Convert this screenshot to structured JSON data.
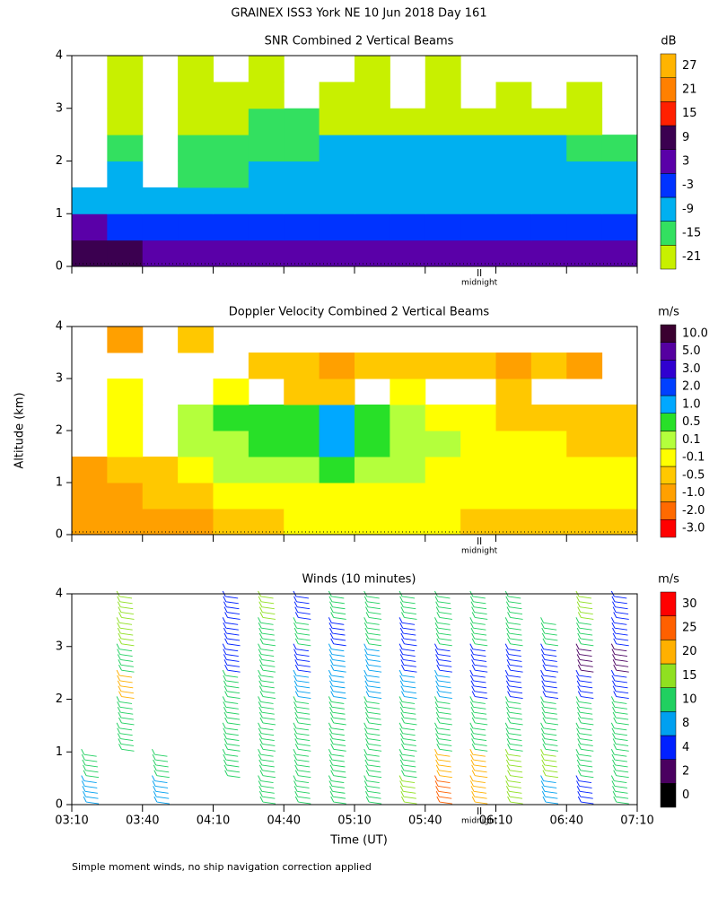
{
  "title": "GRAINEX ISS3 York NE  10 Jun 2018 Day 161",
  "y_label": "Altitude (km)",
  "x_label": "Time (UT)",
  "footnote": "Simple moment winds, no ship navigation correction applied",
  "xlim": [
    190,
    430
  ],
  "xticks": [
    {
      "value": 190,
      "label": "03:10"
    },
    {
      "value": 220,
      "label": "03:40"
    },
    {
      "value": 250,
      "label": "04:10"
    },
    {
      "value": 280,
      "label": "04:40"
    },
    {
      "value": 310,
      "label": "05:10"
    },
    {
      "value": 340,
      "label": "05:40"
    },
    {
      "value": 370,
      "label": "06:10"
    },
    {
      "value": 400,
      "label": "06:40"
    },
    {
      "value": 430,
      "label": "07:10"
    }
  ],
  "chart_data": [
    {
      "type": "heatmap",
      "title": "SNR Combined 2 Vertical Beams",
      "unit": "dB",
      "annotation": {
        "value": 363,
        "label": "midnight"
      },
      "ylim": [
        0,
        4
      ],
      "yticks": [
        0,
        1,
        2,
        3,
        4
      ],
      "x": [
        197.5,
        212.5,
        227.5,
        242.5,
        257.5,
        272.5,
        287.5,
        302.5,
        317.5,
        332.5,
        347.5,
        362.5,
        377.5,
        392.5,
        407.5,
        422.5
      ],
      "y": [
        0.25,
        0.75,
        1.25,
        1.75,
        2.25,
        2.75,
        3.25,
        3.75
      ],
      "values": [
        [
          9,
          9,
          8,
          6,
          5,
          5,
          4,
          4,
          4,
          4,
          3,
          3,
          3,
          3,
          3,
          3
        ],
        [
          3,
          2,
          1,
          0,
          -1,
          -1,
          -2,
          -2,
          -1,
          -1,
          -2,
          -2,
          -1,
          -1,
          -1,
          -1
        ],
        [
          -4,
          -4,
          -5,
          -5,
          -6,
          -6,
          -5,
          -5,
          -5,
          -4,
          -4,
          -4,
          -4,
          -4,
          -4,
          -5
        ],
        [
          null,
          -9,
          null,
          -10,
          -10,
          -9,
          -8,
          -8,
          -8,
          -8,
          -8,
          -9,
          -8,
          -9,
          -9,
          -9
        ],
        [
          null,
          -13,
          null,
          -13,
          -12,
          -11,
          -10,
          -9,
          -9,
          -8,
          -8,
          -8,
          -9,
          -9,
          -10,
          -10
        ],
        [
          null,
          -16,
          null,
          -17,
          -16,
          -15,
          -15,
          -16,
          -17,
          -17,
          -18,
          -18,
          -17,
          -18,
          -18,
          null
        ],
        [
          null,
          -17,
          null,
          -19,
          -19,
          -20,
          null,
          -19,
          -20,
          null,
          -20,
          null,
          -20,
          null,
          -20,
          null
        ],
        [
          null,
          -18,
          null,
          -20,
          null,
          -20,
          null,
          null,
          -19,
          null,
          -20,
          null,
          null,
          null,
          null,
          null
        ]
      ],
      "colorbar": {
        "ticks": [
          -21,
          -15,
          -9,
          -3,
          3,
          9,
          15,
          21,
          27
        ],
        "colors": [
          "#c8f000",
          "#33e060",
          "#00b0f0",
          "#0033ff",
          "#5a00a8",
          "#3b0050",
          "#ff2000",
          "#ff8000",
          "#ffb400"
        ]
      }
    },
    {
      "type": "heatmap",
      "title": "Doppler Velocity Combined 2 Vertical Beams",
      "unit": "m/s",
      "annotation": {
        "value": 363,
        "label": "midnight"
      },
      "ylim": [
        0,
        4
      ],
      "yticks": [
        0,
        1,
        2,
        3,
        4
      ],
      "x": [
        197.5,
        212.5,
        227.5,
        242.5,
        257.5,
        272.5,
        287.5,
        302.5,
        317.5,
        332.5,
        347.5,
        362.5,
        377.5,
        392.5,
        407.5,
        422.5
      ],
      "y": [
        0.25,
        0.75,
        1.25,
        1.75,
        2.25,
        2.75,
        3.25,
        3.75
      ],
      "values": [
        [
          -0.7,
          -0.7,
          -0.6,
          -0.6,
          -0.3,
          -0.2,
          -0.1,
          0,
          0,
          -0.05,
          -0.1,
          -0.2,
          -0.2,
          -0.3,
          -0.2,
          -0.3
        ],
        [
          -0.7,
          -0.6,
          -0.5,
          -0.3,
          0,
          0.05,
          0,
          0,
          0,
          0,
          0,
          0,
          -0.05,
          -0.05,
          -0.1,
          -0.1
        ],
        [
          -0.6,
          -0.4,
          -0.3,
          0.05,
          0.2,
          0.2,
          0.3,
          0.5,
          0.3,
          0.1,
          0,
          0,
          0,
          0,
          -0.1,
          -0.1
        ],
        [
          null,
          -0.05,
          null,
          0.1,
          0.3,
          0.6,
          0.8,
          1.5,
          0.8,
          0.3,
          0.1,
          0.05,
          0,
          -0.05,
          -0.2,
          -0.2
        ],
        [
          null,
          0,
          null,
          0.2,
          0.5,
          0.8,
          0.9,
          1.5,
          0.6,
          0.2,
          0,
          -0.05,
          -0.2,
          -0.3,
          -0.3,
          -0.4
        ],
        [
          null,
          -0.1,
          null,
          null,
          -0.1,
          null,
          -0.3,
          -0.2,
          null,
          -0.1,
          null,
          null,
          -0.3,
          null,
          null,
          null
        ],
        [
          null,
          null,
          null,
          null,
          null,
          -0.3,
          -0.5,
          -0.6,
          -0.4,
          -0.5,
          -0.5,
          -0.4,
          -0.6,
          -0.5,
          -0.6,
          null
        ],
        [
          null,
          -0.6,
          null,
          -0.5,
          null,
          null,
          null,
          null,
          null,
          null,
          null,
          null,
          null,
          null,
          null,
          null
        ]
      ],
      "colorbar": {
        "ticks": [
          {
            "value": -3,
            "label": "-3.0"
          },
          {
            "value": -2,
            "label": "-2.0"
          },
          {
            "value": -1,
            "label": "-1.0"
          },
          -0.5,
          -0.1,
          0.1,
          0.5,
          {
            "value": 1,
            "label": "1.0"
          },
          {
            "value": 2,
            "label": "2.0"
          },
          {
            "value": 3,
            "label": "3.0"
          },
          {
            "value": 5,
            "label": "5.0"
          },
          {
            "value": 10,
            "label": "10.0"
          }
        ],
        "colors": [
          "#ff0000",
          "#ff6a00",
          "#ffa000",
          "#ffc800",
          "#ffff00",
          "#b4ff3c",
          "#28e028",
          "#00a8ff",
          "#0040ff",
          "#3000d0",
          "#5500a0",
          "#3a0030"
        ]
      }
    },
    {
      "type": "barbs",
      "title": "Winds (10 minutes)",
      "unit": "m/s",
      "annotation": {
        "value": 363,
        "label": "midnight"
      },
      "ylim": [
        0,
        4
      ],
      "yticks": [
        0,
        1,
        2,
        3,
        4
      ],
      "x": [
        197.5,
        212.5,
        227.5,
        242.5,
        257.5,
        272.5,
        287.5,
        302.5,
        317.5,
        332.5,
        347.5,
        362.5,
        377.5,
        392.5,
        407.5,
        422.5
      ],
      "y": [
        0.25,
        0.75,
        1.25,
        1.75,
        2.25,
        2.75,
        3.25,
        3.75
      ],
      "values": [
        [
          8,
          null,
          8,
          null,
          null,
          12,
          12,
          10,
          12,
          18,
          25,
          20,
          15,
          8,
          4,
          10
        ],
        [
          12,
          null,
          12,
          null,
          14,
          14,
          14,
          12,
          14,
          12,
          22,
          22,
          18,
          16,
          14,
          14
        ],
        [
          null,
          14,
          null,
          null,
          12,
          12,
          12,
          12,
          12,
          12,
          12,
          12,
          12,
          12,
          12,
          12
        ],
        [
          null,
          14,
          null,
          null,
          11,
          11,
          11,
          11,
          11,
          11,
          11,
          11,
          11,
          11,
          11,
          11
        ],
        [
          null,
          20,
          null,
          null,
          10,
          10,
          9,
          9,
          9,
          8,
          8,
          6,
          7,
          6,
          6,
          5
        ],
        [
          null,
          14,
          null,
          null,
          6,
          10,
          7,
          8,
          8,
          7,
          6,
          4,
          5,
          4,
          3,
          3
        ],
        [
          null,
          16,
          null,
          null,
          4,
          12,
          12,
          6,
          10,
          6,
          14,
          12,
          10,
          14,
          12,
          4
        ],
        [
          null,
          16,
          null,
          null,
          4,
          18,
          4,
          12,
          14,
          12,
          14,
          14,
          14,
          null,
          16,
          4
        ]
      ],
      "colorbar": {
        "ticks": [
          0,
          2,
          4,
          8,
          10,
          15,
          20,
          25,
          30
        ],
        "colors": [
          "#000000",
          "#4a0060",
          "#0020ff",
          "#00a0f0",
          "#20d060",
          "#90e020",
          "#ffb000",
          "#ff6000",
          "#ff0000"
        ]
      }
    }
  ]
}
